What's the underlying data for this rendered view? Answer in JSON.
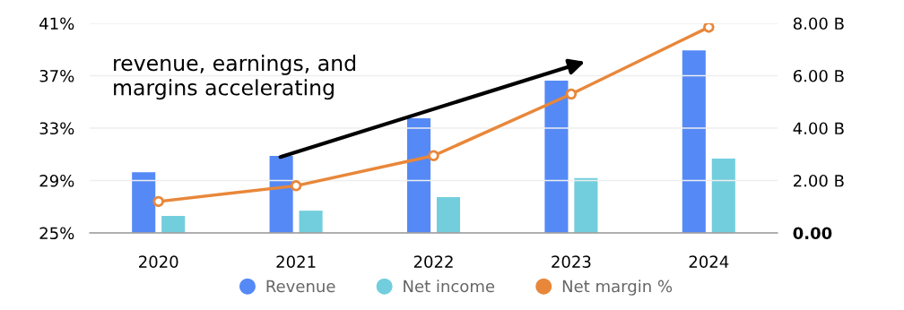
{
  "chart_data": {
    "type": "bar",
    "categories": [
      "2020",
      "2021",
      "2022",
      "2023",
      "2024"
    ],
    "series": [
      {
        "name": "Revenue",
        "color": "#5589f6",
        "axis": "y2",
        "values": [
          2.32,
          2.94,
          4.38,
          5.81,
          6.97
        ]
      },
      {
        "name": "Net income",
        "color": "#72cedd",
        "axis": "y2",
        "values": [
          0.65,
          0.85,
          1.37,
          2.09,
          2.84
        ]
      },
      {
        "name": "Net margin %",
        "type": "line",
        "color": "#e8873a",
        "marker": "circle",
        "values": [
          27.4,
          28.6,
          30.9,
          35.6,
          40.7
        ]
      }
    ],
    "ylim": [
      25,
      41
    ],
    "yticks": [
      {
        "value": 25,
        "label": "25%"
      },
      {
        "value": 29,
        "label": "29%"
      },
      {
        "value": 33,
        "label": "33%"
      },
      {
        "value": 37,
        "label": "37%"
      },
      {
        "value": 41,
        "label": "41%"
      }
    ],
    "y2lim": [
      0,
      8
    ],
    "y2ticks": [
      {
        "value": 0,
        "label": "0.00"
      },
      {
        "value": 2,
        "label": "2.00 B"
      },
      {
        "value": 4,
        "label": "4.00 B"
      },
      {
        "value": 6,
        "label": "6.00 B"
      },
      {
        "value": 8,
        "label": "8.00 B"
      }
    ],
    "grid": "y",
    "legend": "bottom",
    "annotations": [
      "revenue, earnings, and\nmargins accelerating"
    ]
  }
}
